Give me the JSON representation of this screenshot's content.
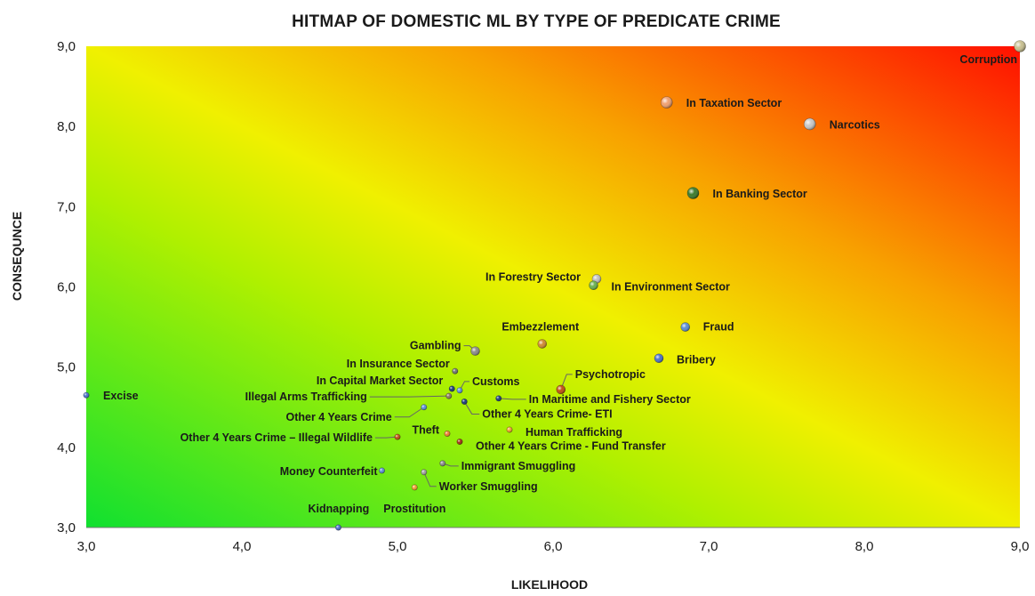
{
  "chart_data": {
    "type": "scatter",
    "title": "HITMAP OF DOMESTIC ML BY TYPE OF PREDICATE CRIME",
    "xlabel": "LIKELIHOOD",
    "ylabel": "CONSEQUNCE",
    "xlim": [
      3,
      9
    ],
    "ylim": [
      3,
      9
    ],
    "x_ticks": [
      "3,0",
      "4,0",
      "5,0",
      "6,0",
      "7,0",
      "8,0",
      "9,0"
    ],
    "y_ticks": [
      "3,0",
      "4,0",
      "5,0",
      "6,0",
      "7,0",
      "8,0",
      "9,0"
    ],
    "background": "heat gradient: green (low) to yellow to red (high)",
    "grid": false,
    "legend": "none",
    "points": [
      {
        "label": "Corruption",
        "x": 9.0,
        "y": 9.0,
        "color": "#c8c090",
        "size": "large"
      },
      {
        "label": "In Taxation Sector",
        "x": 6.73,
        "y": 8.3,
        "color": "#f0a070",
        "size": "large"
      },
      {
        "label": "Narcotics",
        "x": 7.65,
        "y": 8.03,
        "color": "#c8c8c8",
        "size": "large"
      },
      {
        "label": "In Banking Sector",
        "x": 6.9,
        "y": 7.17,
        "color": "#3a7a2a",
        "size": "large"
      },
      {
        "label": "In Forestry Sector",
        "x": 6.28,
        "y": 6.1,
        "color": "#c0c0c0",
        "size": "medium"
      },
      {
        "label": "In Environment Sector",
        "x": 6.26,
        "y": 6.02,
        "color": "#6ab04c",
        "size": "medium"
      },
      {
        "label": "Fraud",
        "x": 6.85,
        "y": 5.5,
        "color": "#5b8dd6",
        "size": "medium"
      },
      {
        "label": "Embezzlement",
        "x": 5.93,
        "y": 5.29,
        "color": "#d08a30",
        "size": "medium"
      },
      {
        "label": "Gambling",
        "x": 5.5,
        "y": 5.2,
        "color": "#8a8a8a",
        "size": "medium"
      },
      {
        "label": "Bribery",
        "x": 6.68,
        "y": 5.11,
        "color": "#4a6fc8",
        "size": "medium"
      },
      {
        "label": "In Insurance Sector",
        "x": 5.37,
        "y": 4.95,
        "color": "#707070",
        "size": "small"
      },
      {
        "label": "Psychotropic",
        "x": 6.05,
        "y": 4.72,
        "color": "#c05010",
        "size": "medium"
      },
      {
        "label": "Customs",
        "x": 5.4,
        "y": 4.71,
        "color": "#5b8dd6",
        "size": "small"
      },
      {
        "label": "In Capital Market Sector",
        "x": 5.35,
        "y": 4.73,
        "color": "#1a3a7a",
        "size": "small"
      },
      {
        "label": "Excise",
        "x": 3.0,
        "y": 4.65,
        "color": "#4a6fc8",
        "size": "small"
      },
      {
        "label": "Illegal Arms Trafficking",
        "x": 5.33,
        "y": 4.64,
        "color": "#8a7a60",
        "size": "small"
      },
      {
        "label": "In Maritime and Fishery Sector",
        "x": 5.65,
        "y": 4.61,
        "color": "#1a3a7a",
        "size": "small"
      },
      {
        "label": "Other 4 Years Crime- ETI",
        "x": 5.43,
        "y": 4.57,
        "color": "#1a3a7a",
        "size": "small"
      },
      {
        "label": "Other 4 Years Crime",
        "x": 5.17,
        "y": 4.5,
        "color": "#5b8dd6",
        "size": "small"
      },
      {
        "label": "Human Trafficking",
        "x": 5.72,
        "y": 4.22,
        "color": "#f0a030",
        "size": "small"
      },
      {
        "label": "Theft",
        "x": 5.32,
        "y": 4.17,
        "color": "#f08030",
        "size": "small"
      },
      {
        "label": "Other 4 Years Crime – Illegal Wildlife",
        "x": 5.0,
        "y": 4.13,
        "color": "#c05010",
        "size": "small"
      },
      {
        "label": "Other 4 Years Crime - Fund Transfer",
        "x": 5.4,
        "y": 4.07,
        "color": "#a03010",
        "size": "small"
      },
      {
        "label": "Immigrant Smuggling",
        "x": 5.29,
        "y": 3.8,
        "color": "#8a8a8a",
        "size": "small"
      },
      {
        "label": "Money Counterfeit",
        "x": 4.9,
        "y": 3.71,
        "color": "#5b8dd6",
        "size": "small"
      },
      {
        "label": "Worker Smuggling",
        "x": 5.17,
        "y": 3.69,
        "color": "#a0a0a0",
        "size": "small"
      },
      {
        "label": "Prostitution",
        "x": 5.11,
        "y": 3.5,
        "color": "#f0a030",
        "size": "small"
      },
      {
        "label": "Kidnapping",
        "x": 4.62,
        "y": 3.0,
        "color": "#4a6fc8",
        "size": "small"
      }
    ]
  }
}
